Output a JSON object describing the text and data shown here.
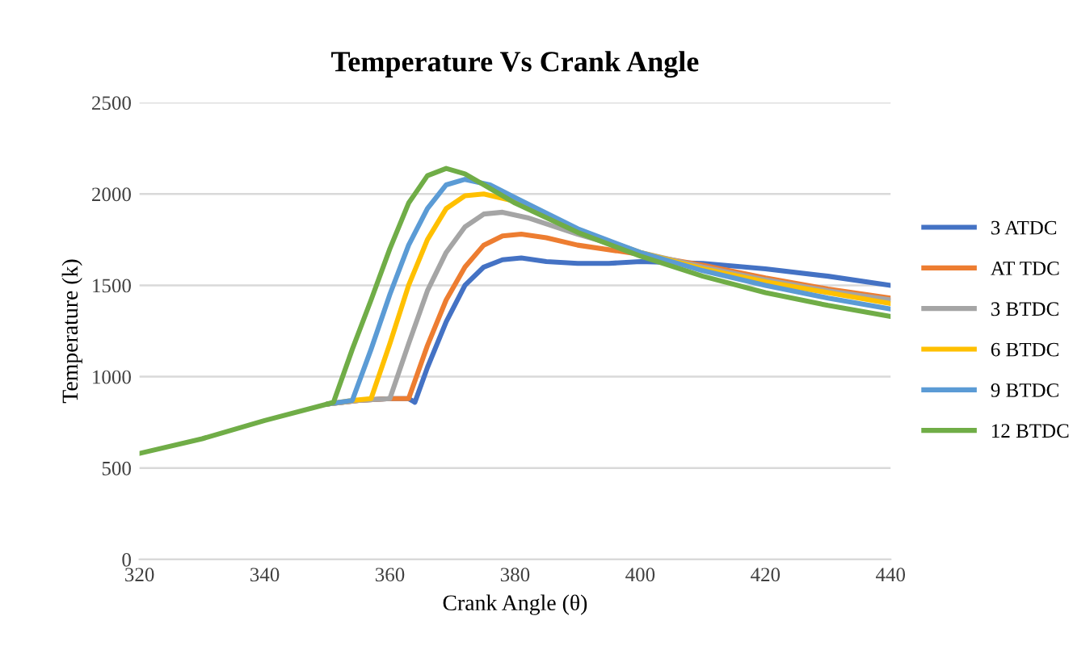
{
  "chart_data": {
    "type": "line",
    "title": "Temperature Vs Crank Angle",
    "xlabel": "Crank Angle (θ)",
    "ylabel": "Temperature (k)",
    "xlim": [
      320,
      440
    ],
    "xticks": [
      320,
      340,
      360,
      380,
      400,
      420,
      440
    ],
    "ylim": [
      0,
      2500
    ],
    "yticks": [
      0,
      500,
      1000,
      1500,
      2000,
      2500
    ],
    "grid": "y",
    "legend": "right",
    "marker": "none",
    "line_style": "solid",
    "series": [
      {
        "name": "3 ATDC",
        "color": "#4472c4",
        "x": [
          350,
          355,
          360,
          363,
          364,
          366,
          369,
          372,
          375,
          378,
          381,
          385,
          390,
          395,
          400,
          410,
          420,
          430,
          440
        ],
        "values": [
          850,
          870,
          880,
          880,
          860,
          1050,
          1300,
          1500,
          1600,
          1640,
          1650,
          1630,
          1620,
          1620,
          1630,
          1620,
          1590,
          1550,
          1500
        ]
      },
      {
        "name": "AT TDC",
        "color": "#ed7d31",
        "x": [
          350,
          355,
          360,
          363,
          366,
          369,
          372,
          375,
          378,
          381,
          385,
          390,
          400,
          410,
          420,
          430,
          440
        ],
        "values": [
          850,
          870,
          880,
          880,
          1170,
          1420,
          1600,
          1720,
          1770,
          1780,
          1760,
          1720,
          1670,
          1610,
          1540,
          1480,
          1430
        ]
      },
      {
        "name": "3 BTDC",
        "color": "#a5a5a5",
        "x": [
          350,
          355,
          360,
          363,
          366,
          369,
          372,
          375,
          378,
          382,
          390,
          400,
          410,
          420,
          430,
          440
        ],
        "values": [
          850,
          870,
          880,
          1180,
          1470,
          1680,
          1820,
          1890,
          1900,
          1870,
          1780,
          1680,
          1600,
          1530,
          1470,
          1420
        ]
      },
      {
        "name": "6 BTDC",
        "color": "#ffc000",
        "x": [
          350,
          354,
          357,
          360,
          363,
          366,
          369,
          372,
          375,
          380,
          390,
          400,
          410,
          420,
          430,
          440
        ],
        "values": [
          850,
          870,
          880,
          1180,
          1500,
          1750,
          1920,
          1990,
          2000,
          1960,
          1800,
          1680,
          1590,
          1520,
          1460,
          1400
        ]
      },
      {
        "name": "9 BTDC",
        "color": "#5b9bd5",
        "x": [
          350,
          354,
          357,
          360,
          363,
          366,
          369,
          372,
          376,
          380,
          390,
          400,
          410,
          420,
          430,
          440
        ],
        "values": [
          850,
          870,
          1150,
          1450,
          1720,
          1920,
          2050,
          2080,
          2050,
          1980,
          1810,
          1680,
          1580,
          1500,
          1430,
          1370
        ]
      },
      {
        "name": "12 BTDC",
        "color": "#70ad47",
        "x": [
          320,
          330,
          340,
          350,
          351,
          354,
          357,
          360,
          363,
          366,
          369,
          372,
          376,
          380,
          390,
          400,
          410,
          420,
          430,
          440
        ],
        "values": [
          580,
          660,
          760,
          850,
          860,
          1150,
          1420,
          1700,
          1950,
          2100,
          2140,
          2110,
          2030,
          1950,
          1790,
          1660,
          1550,
          1460,
          1390,
          1330
        ]
      }
    ]
  }
}
